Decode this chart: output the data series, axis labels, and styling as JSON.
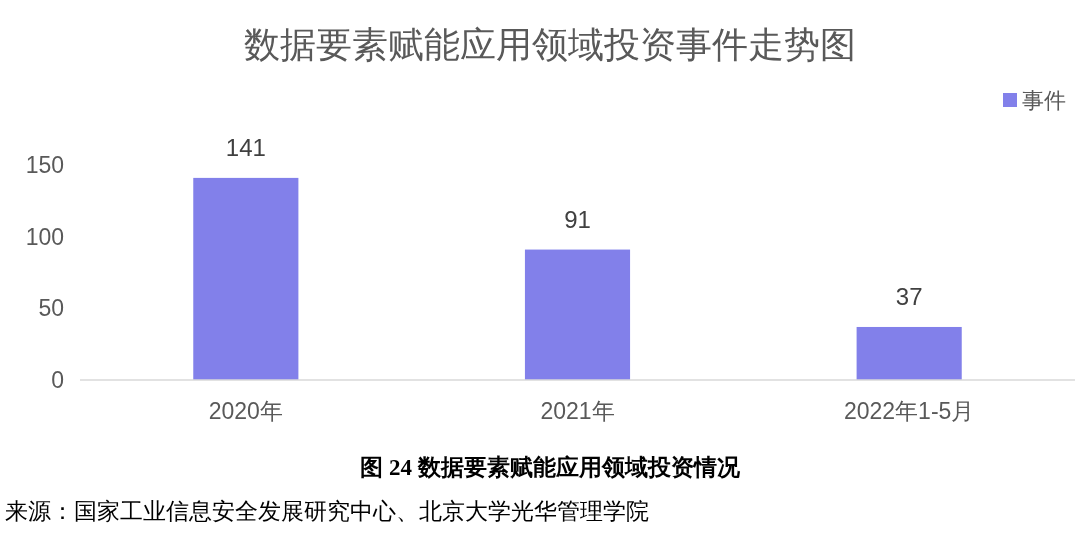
{
  "chart_data": {
    "type": "bar",
    "title": "数据要素赋能应用领域投资事件走势图",
    "categories": [
      "2020年",
      "2021年",
      "2022年1-5月"
    ],
    "series": [
      {
        "name": "事件",
        "color": "#8280ea",
        "values": [
          141,
          91,
          37
        ]
      }
    ],
    "ylim": [
      0,
      150
    ],
    "yticks": [
      0,
      50,
      100,
      150
    ],
    "data_labels": true,
    "legend": "top right",
    "annotations": [
      "图 24 数据要素赋能应用领域投资情况",
      "来源：国家工业信息安全发展研究中心、北京大学光华管理学院"
    ]
  }
}
